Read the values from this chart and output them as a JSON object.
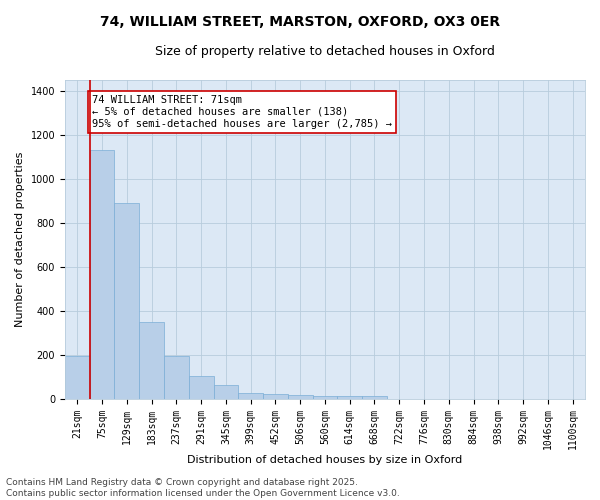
{
  "title_line1": "74, WILLIAM STREET, MARSTON, OXFORD, OX3 0ER",
  "title_line2": "Size of property relative to detached houses in Oxford",
  "xlabel": "Distribution of detached houses by size in Oxford",
  "ylabel": "Number of detached properties",
  "categories": [
    "21sqm",
    "75sqm",
    "129sqm",
    "183sqm",
    "237sqm",
    "291sqm",
    "345sqm",
    "399sqm",
    "452sqm",
    "506sqm",
    "560sqm",
    "614sqm",
    "668sqm",
    "722sqm",
    "776sqm",
    "830sqm",
    "884sqm",
    "938sqm",
    "992sqm",
    "1046sqm",
    "1100sqm"
  ],
  "values": [
    195,
    1130,
    890,
    350,
    195,
    105,
    60,
    25,
    20,
    15,
    10,
    10,
    10,
    0,
    0,
    0,
    0,
    0,
    0,
    0,
    0
  ],
  "bar_color": "#b8cfe8",
  "bar_edge_color": "#7aaed6",
  "vline_color": "#cc0000",
  "vline_x_index": 1,
  "annotation_text": "74 WILLIAM STREET: 71sqm\n← 5% of detached houses are smaller (138)\n95% of semi-detached houses are larger (2,785) →",
  "annotation_box_color": "white",
  "annotation_box_edge": "#cc0000",
  "ylim": [
    0,
    1450
  ],
  "yticks": [
    0,
    200,
    400,
    600,
    800,
    1000,
    1200,
    1400
  ],
  "background_color": "#dce8f5",
  "grid_color": "#b8ccdc",
  "footer_line1": "Contains HM Land Registry data © Crown copyright and database right 2025.",
  "footer_line2": "Contains public sector information licensed under the Open Government Licence v3.0.",
  "title_fontsize": 10,
  "subtitle_fontsize": 9,
  "axis_label_fontsize": 8,
  "tick_fontsize": 7,
  "annotation_fontsize": 7.5,
  "footer_fontsize": 6.5
}
